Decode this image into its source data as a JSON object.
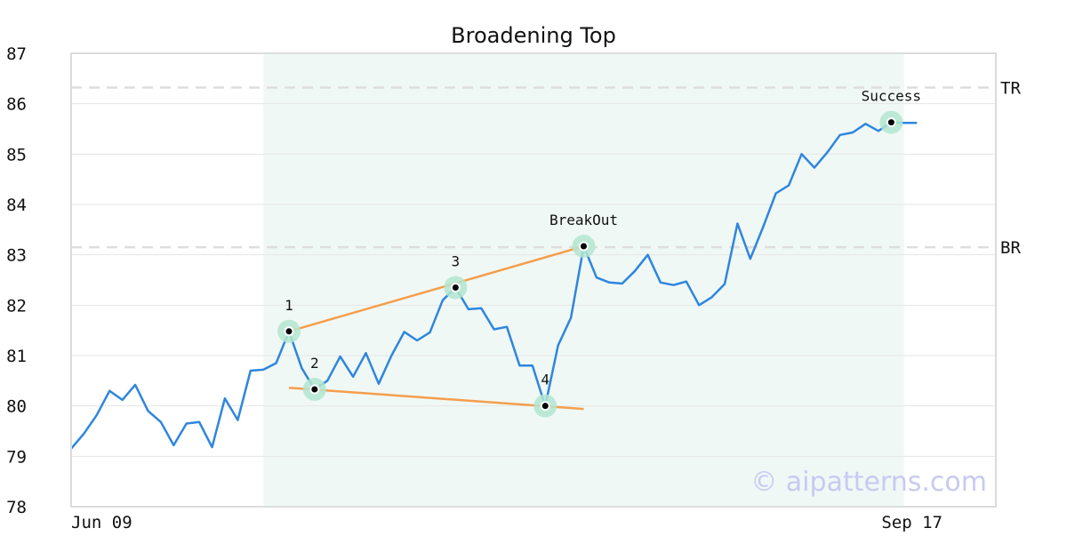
{
  "chart_data": {
    "type": "line",
    "title": "Broadening Top",
    "xlabel": "",
    "ylabel": "",
    "ylim": [
      78,
      87
    ],
    "yticks": [
      78,
      79,
      80,
      81,
      82,
      83,
      84,
      85,
      86,
      87
    ],
    "xlim": [
      0,
      68
    ],
    "x_tick_labels": [
      {
        "x": 0,
        "label": "Jun 09"
      },
      {
        "x": 68,
        "label": "Sep 17"
      }
    ],
    "grid": true,
    "series": [
      {
        "name": "",
        "color": "#2e86de",
        "values": [
          79.15,
          79.45,
          79.82,
          80.3,
          80.12,
          80.42,
          79.9,
          79.68,
          79.22,
          79.65,
          79.68,
          79.18,
          80.15,
          79.72,
          80.7,
          80.72,
          80.85,
          81.48,
          80.75,
          80.33,
          80.5,
          80.98,
          80.58,
          81.05,
          80.44,
          81.0,
          81.47,
          81.3,
          81.46,
          82.1,
          82.35,
          81.92,
          81.94,
          81.52,
          81.57,
          80.8,
          80.8,
          80.0,
          81.2,
          81.75,
          83.17,
          82.55,
          82.45,
          82.43,
          82.68,
          83.0,
          82.45,
          82.4,
          82.47,
          82.0,
          82.16,
          82.42,
          83.62,
          82.92,
          83.55,
          84.22,
          84.38,
          85.0,
          84.73,
          85.03,
          85.38,
          85.43,
          85.6,
          85.46,
          85.63,
          85.62,
          85.62
        ]
      }
    ],
    "pattern_region": {
      "x_start": 15,
      "x_end": 65,
      "color": "#e6f4ee"
    },
    "trendlines": [
      {
        "color": "#f59e4c",
        "x1": 17,
        "y1": 81.48,
        "x2": 40,
        "y2": 83.17
      },
      {
        "color": "#f59e4c",
        "x1": 17,
        "y1": 80.36,
        "x2": 40,
        "y2": 79.94
      }
    ],
    "levels": [
      {
        "label": "TR",
        "value": 86.32
      },
      {
        "label": "BR",
        "value": 83.15
      }
    ],
    "points": [
      {
        "label": "1",
        "x": 17,
        "y": 81.48,
        "label_pos": "above"
      },
      {
        "label": "2",
        "x": 19,
        "y": 80.33,
        "label_pos": "above"
      },
      {
        "label": "3",
        "x": 30,
        "y": 82.35,
        "label_pos": "above"
      },
      {
        "label": "4",
        "x": 37,
        "y": 80.0,
        "label_pos": "above"
      },
      {
        "label": "BreakOut",
        "x": 40,
        "y": 83.17,
        "label_pos": "above"
      },
      {
        "label": "Success",
        "x": 64,
        "y": 85.63,
        "label_pos": "above"
      }
    ],
    "watermark": "© aipatterns.com"
  }
}
